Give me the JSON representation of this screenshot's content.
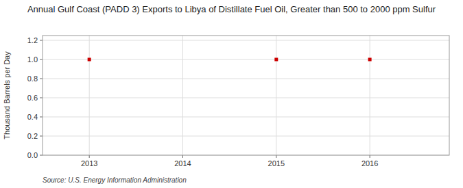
{
  "chart_data": {
    "type": "scatter",
    "title": "Annual Gulf Coast (PADD 3) Exports to Libya of Distillate Fuel Oil, Greater than 500 to 2000 ppm Sulfur",
    "ylabel": "Thousand Barrels per Day",
    "annotations": [
      "Source: U.S. Energy Information Administration"
    ],
    "x": [
      2013,
      2015,
      2016
    ],
    "values": [
      1.0,
      1.0,
      1.0
    ],
    "color": "#cc0000",
    "marker": "square",
    "xlim": [
      2012.5,
      2016.85
    ],
    "ylim": [
      0.0,
      1.25
    ],
    "xticks": [
      2013,
      2014,
      2015,
      2016
    ],
    "yticks": [
      {
        "value": 0.0,
        "label": "0.0"
      },
      0.2,
      0.4,
      0.6,
      0.8,
      {
        "value": 1.0,
        "label": "1.0"
      },
      1.2
    ],
    "grid": true
  }
}
